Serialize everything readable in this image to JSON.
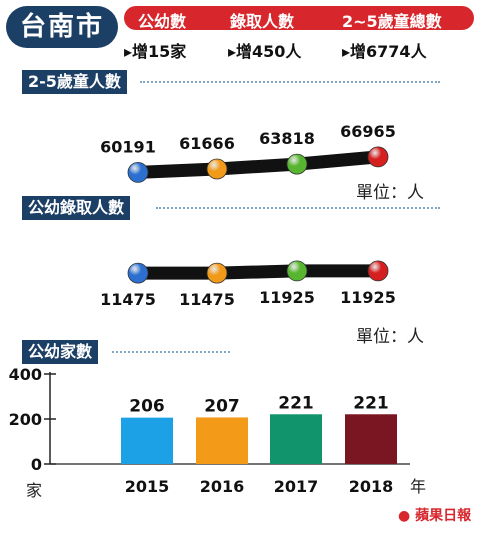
{
  "header": {
    "city": "台南市",
    "metrics": [
      "公幼數",
      "錄取人數",
      "2~5歲童總數"
    ],
    "changes": [
      "▸增15家",
      "▸增450人",
      "▸增6774人"
    ]
  },
  "colors": {
    "navy": "#1c3f66",
    "red": "#d7272d",
    "marker_2015": "#2b6fd0",
    "marker_2016": "#f19a1a",
    "marker_2017": "#58b530",
    "marker_2018": "#d62020"
  },
  "unit_label": "單位：人",
  "logo_text": "蘋果日報",
  "chart_data": [
    {
      "type": "line",
      "title": "2-5歲童人數",
      "x": [
        "2015",
        "2016",
        "2017",
        "2018"
      ],
      "values": [
        60191,
        61666,
        63818,
        66965
      ],
      "ylim": [
        56000,
        70000
      ]
    },
    {
      "type": "line",
      "title": "公幼錄取人數",
      "x": [
        "2015",
        "2016",
        "2017",
        "2018"
      ],
      "values": [
        11475,
        11475,
        11925,
        11925
      ],
      "ylim": [
        10000,
        13400
      ]
    },
    {
      "type": "bar",
      "title": "公幼家數",
      "categories": [
        "2015",
        "2016",
        "2017",
        "2018"
      ],
      "values": [
        206,
        207,
        221,
        221
      ],
      "colors": [
        "#1da1e6",
        "#f39a18",
        "#11946c",
        "#7a1522"
      ],
      "ylim": [
        0,
        400
      ],
      "yticks": [
        0,
        200,
        400
      ],
      "ylabel": "家",
      "xlabel": "年"
    }
  ]
}
